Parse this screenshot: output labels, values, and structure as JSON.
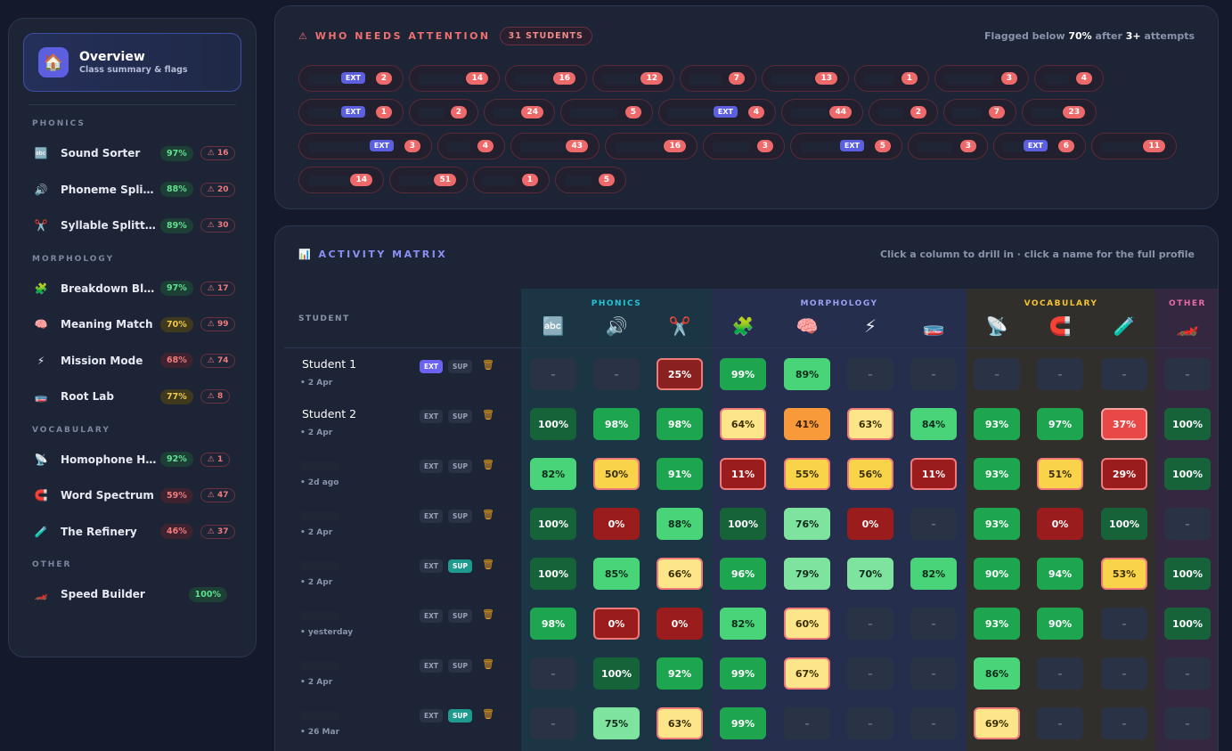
{
  "sidebar": {
    "overview": {
      "title": "Overview",
      "subtitle": "Class summary & flags",
      "icon": "home-icon"
    },
    "sections": [
      {
        "title": "PHONICS",
        "items": [
          {
            "label": "Sound Sorter",
            "pct": "97%",
            "level": "g",
            "flags": "⚠ 16",
            "icon": "abc-icon"
          },
          {
            "label": "Phoneme Splitter",
            "pct": "88%",
            "level": "g",
            "flags": "⚠ 20",
            "icon": "speaker-icon"
          },
          {
            "label": "Syllable Splitter",
            "pct": "89%",
            "level": "g",
            "flags": "⚠ 30",
            "icon": "scissors-icon"
          }
        ]
      },
      {
        "title": "MORPHOLOGY",
        "items": [
          {
            "label": "Breakdown Blitz",
            "pct": "97%",
            "level": "g",
            "flags": "⚠ 17",
            "icon": "puzzle-icon"
          },
          {
            "label": "Meaning Match",
            "pct": "70%",
            "level": "y",
            "flags": "⚠ 99",
            "icon": "brain-icon"
          },
          {
            "label": "Mission Mode",
            "pct": "68%",
            "level": "r",
            "flags": "⚠ 74",
            "icon": "lightning-icon"
          },
          {
            "label": "Root Lab",
            "pct": "77%",
            "level": "y",
            "flags": "⚠ 8",
            "icon": "dish-icon"
          }
        ]
      },
      {
        "title": "VOCABULARY",
        "items": [
          {
            "label": "Homophone Hunt",
            "pct": "92%",
            "level": "g",
            "flags": "⚠ 1",
            "icon": "satellite-icon"
          },
          {
            "label": "Word Spectrum",
            "pct": "59%",
            "level": "r",
            "flags": "⚠ 47",
            "icon": "magnet-icon"
          },
          {
            "label": "The Refinery",
            "pct": "46%",
            "level": "r",
            "flags": "⚠ 37",
            "icon": "flask-icon"
          }
        ]
      },
      {
        "title": "OTHER",
        "items": [
          {
            "label": "Speed Builder",
            "pct": "100%",
            "level": "g",
            "flags": "",
            "icon": "car-icon"
          }
        ]
      }
    ]
  },
  "attention": {
    "title": "⚠ WHO NEEDS ATTENTION",
    "count": "31 STUDENTS",
    "note_pre": "Flagged below",
    "note_pct": "70%",
    "note_mid": "after",
    "note_attempts": "3+",
    "note_post": "attempts",
    "ext_label": "EXT",
    "chips": [
      {
        "n": "2",
        "ext": true
      },
      {
        "n": "14"
      },
      {
        "n": "16"
      },
      {
        "n": "12"
      },
      {
        "n": "7"
      },
      {
        "n": "13"
      },
      {
        "n": "1"
      },
      {
        "n": "3"
      },
      {
        "n": "4"
      },
      {
        "n": "1",
        "ext": true
      },
      {
        "n": "2"
      },
      {
        "n": "24"
      },
      {
        "n": "5"
      },
      {
        "n": "4",
        "ext": true
      },
      {
        "n": "44"
      },
      {
        "n": "2"
      },
      {
        "n": "7"
      },
      {
        "n": "23"
      },
      {
        "n": "3",
        "ext": true
      },
      {
        "n": "4"
      },
      {
        "n": "43"
      },
      {
        "n": "16"
      },
      {
        "n": "3"
      },
      {
        "n": "5",
        "ext": true
      },
      {
        "n": "3"
      },
      {
        "n": "6",
        "ext": true
      },
      {
        "n": "11"
      },
      {
        "n": "14"
      },
      {
        "n": "51"
      },
      {
        "n": "1"
      },
      {
        "n": "5"
      }
    ]
  },
  "matrix": {
    "title": "ACTIVITY MATRIX",
    "note": "Click a column to drill in · click a name for the full profile",
    "student_header": "STUDENT",
    "sections": [
      {
        "label": "PHONICS",
        "color": "#22c4d8",
        "bg": "#1b3545"
      },
      {
        "label": "MORPHOLOGY",
        "color": "#9aa0f5",
        "bg": "#262e4d"
      },
      {
        "label": "VOCABULARY",
        "color": "#f5c430",
        "bg": "#302f2c"
      },
      {
        "label": "OTHER",
        "color": "#e86aa8",
        "bg": "#33283f"
      }
    ],
    "columns": [
      "abc-icon",
      "speaker-icon",
      "scissors-icon",
      "puzzle-icon",
      "brain-icon",
      "lightning-icon",
      "dish-icon",
      "satellite-icon",
      "magnet-icon",
      "flask-icon",
      "car-icon"
    ],
    "tags": {
      "ext": "EXT",
      "sup": "SUP"
    },
    "rows": [
      {
        "name": "Student 1",
        "date": "• 2 Apr",
        "ext": true,
        "sup": false,
        "cells": [
          [
            "–",
            "empty"
          ],
          [
            "–",
            "empty"
          ],
          [
            "25%",
            "pk"
          ],
          [
            "99%",
            "g"
          ],
          [
            "89%",
            "lg"
          ],
          [
            "–",
            "empty"
          ],
          [
            "–",
            "empty"
          ],
          [
            "–",
            "empty"
          ],
          [
            "–",
            "empty"
          ],
          [
            "–",
            "empty"
          ],
          [
            "–",
            "empty"
          ]
        ]
      },
      {
        "name": "Student 2",
        "date": "• 2 Apr",
        "ext": false,
        "sup": false,
        "cells": [
          [
            "100%",
            "dg"
          ],
          [
            "98%",
            "g"
          ],
          [
            "98%",
            "g"
          ],
          [
            "64%",
            "y"
          ],
          [
            "41%",
            "o"
          ],
          [
            "63%",
            "y"
          ],
          [
            "84%",
            "lg"
          ],
          [
            "93%",
            "g"
          ],
          [
            "97%",
            "g"
          ],
          [
            "37%",
            "r"
          ],
          [
            "100%",
            "dg"
          ]
        ]
      },
      {
        "name": "",
        "date": "• 2d ago",
        "ext": false,
        "sup": false,
        "cells": [
          [
            "82%",
            "lg"
          ],
          [
            "50%",
            "yy"
          ],
          [
            "91%",
            "g"
          ],
          [
            "11%",
            "drb"
          ],
          [
            "55%",
            "yy"
          ],
          [
            "56%",
            "yy"
          ],
          [
            "11%",
            "drb"
          ],
          [
            "93%",
            "g"
          ],
          [
            "51%",
            "yy"
          ],
          [
            "29%",
            "drb"
          ],
          [
            "100%",
            "dg"
          ]
        ]
      },
      {
        "name": "",
        "date": "• 2 Apr",
        "ext": false,
        "sup": false,
        "cells": [
          [
            "100%",
            "dg"
          ],
          [
            "0%",
            "dr"
          ],
          [
            "88%",
            "lg"
          ],
          [
            "100%",
            "dg"
          ],
          [
            "76%",
            "pg"
          ],
          [
            "0%",
            "dr"
          ],
          [
            "–",
            "empty"
          ],
          [
            "93%",
            "g"
          ],
          [
            "0%",
            "dr"
          ],
          [
            "100%",
            "dg"
          ],
          [
            "–",
            "empty"
          ]
        ]
      },
      {
        "name": "",
        "date": "• 2 Apr",
        "ext": false,
        "sup": true,
        "cells": [
          [
            "100%",
            "dg"
          ],
          [
            "85%",
            "lg"
          ],
          [
            "66%",
            "y"
          ],
          [
            "96%",
            "g"
          ],
          [
            "79%",
            "pg"
          ],
          [
            "70%",
            "pg"
          ],
          [
            "82%",
            "lg"
          ],
          [
            "90%",
            "g"
          ],
          [
            "94%",
            "g"
          ],
          [
            "53%",
            "yy"
          ],
          [
            "100%",
            "dg"
          ]
        ]
      },
      {
        "name": "",
        "date": "• yesterday",
        "ext": false,
        "sup": false,
        "cells": [
          [
            "98%",
            "g"
          ],
          [
            "0%",
            "drb"
          ],
          [
            "0%",
            "dr"
          ],
          [
            "82%",
            "lg"
          ],
          [
            "60%",
            "y"
          ],
          [
            "–",
            "empty"
          ],
          [
            "–",
            "empty"
          ],
          [
            "93%",
            "g"
          ],
          [
            "90%",
            "g"
          ],
          [
            "–",
            "empty"
          ],
          [
            "100%",
            "dg"
          ]
        ]
      },
      {
        "name": "",
        "date": "• 2 Apr",
        "ext": false,
        "sup": false,
        "cells": [
          [
            "–",
            "empty"
          ],
          [
            "100%",
            "dg"
          ],
          [
            "92%",
            "g"
          ],
          [
            "99%",
            "g"
          ],
          [
            "67%",
            "y"
          ],
          [
            "–",
            "empty"
          ],
          [
            "–",
            "empty"
          ],
          [
            "86%",
            "lg"
          ],
          [
            "–",
            "empty"
          ],
          [
            "–",
            "empty"
          ],
          [
            "–",
            "empty"
          ]
        ]
      },
      {
        "name": "",
        "date": "• 26 Mar",
        "ext": false,
        "sup": true,
        "cells": [
          [
            "–",
            "empty"
          ],
          [
            "75%",
            "pg"
          ],
          [
            "63%",
            "y"
          ],
          [
            "99%",
            "g"
          ],
          [
            "–",
            "empty"
          ],
          [
            "–",
            "empty"
          ],
          [
            "–",
            "empty"
          ],
          [
            "69%",
            "y"
          ],
          [
            "–",
            "empty"
          ],
          [
            "–",
            "empty"
          ],
          [
            "–",
            "empty"
          ]
        ]
      }
    ]
  }
}
